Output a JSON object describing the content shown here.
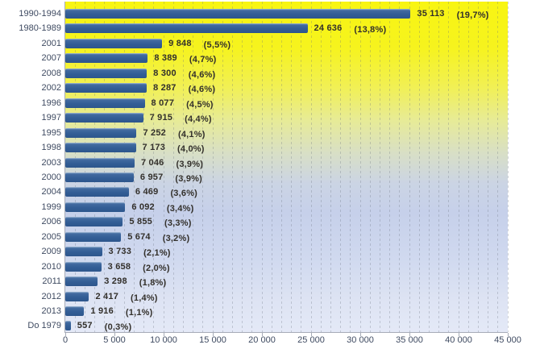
{
  "chart_data": {
    "type": "bar",
    "orientation": "horizontal",
    "title": "",
    "xlabel": "",
    "ylabel": "",
    "categories": [
      "1990-1994",
      "1980-1989",
      "2001",
      "2007",
      "2008",
      "2002",
      "1996",
      "1997",
      "1995",
      "1998",
      "2003",
      "2000",
      "2004",
      "1999",
      "2006",
      "2005",
      "2009",
      "2010",
      "2011",
      "2012",
      "2013",
      "Do 1979"
    ],
    "values": [
      35113,
      24636,
      9848,
      8389,
      8300,
      8287,
      8077,
      7915,
      7252,
      7173,
      7046,
      6957,
      6469,
      6092,
      5855,
      5674,
      3733,
      3658,
      3298,
      2417,
      1916,
      557
    ],
    "value_labels": [
      "35 113",
      "24 636",
      "9 848",
      "8 389",
      "8 300",
      "8 287",
      "8 077",
      "7 915",
      "7 252",
      "7 173",
      "7 046",
      "6 957",
      "6 469",
      "6 092",
      "5 855",
      "5 674",
      "3 733",
      "3 658",
      "3 298",
      "2 417",
      "1 916",
      "557"
    ],
    "pct_labels": [
      "(19,7%)",
      "(13,8%)",
      "(5,5%)",
      "(4,7%)",
      "(4,6%)",
      "(4,6%)",
      "(4,5%)",
      "(4,4%)",
      "(4,1%)",
      "(4,0%)",
      "(3,9%)",
      "(3,9%)",
      "(3,6%)",
      "(3,4%)",
      "(3,3%)",
      "(3,2%)",
      "(2,1%)",
      "(2,0%)",
      "(1,8%)",
      "(1,4%)",
      "(1,1%)",
      "(0,3%)"
    ],
    "xlim": [
      0,
      45000
    ],
    "x_tick_interval": 5000,
    "x_minor_gridline_interval": 1000,
    "x_tick_labels": [
      "0",
      "5 000",
      "10 000",
      "15 000",
      "20 000",
      "25 000",
      "30 000",
      "35 000",
      "40 000",
      "45 000"
    ],
    "grid": "minor-vertical-dashed",
    "legend": "none",
    "colors": {
      "bar": "#335e96",
      "background_top": "#f8f512",
      "background_bottom": "#e4e9f7",
      "background_mid_blue": "#c6d0ea",
      "axis_line": "#a7acb8",
      "gridline": "#68707e",
      "category_text": "#3e4a61",
      "value_text": "#33302b"
    }
  }
}
